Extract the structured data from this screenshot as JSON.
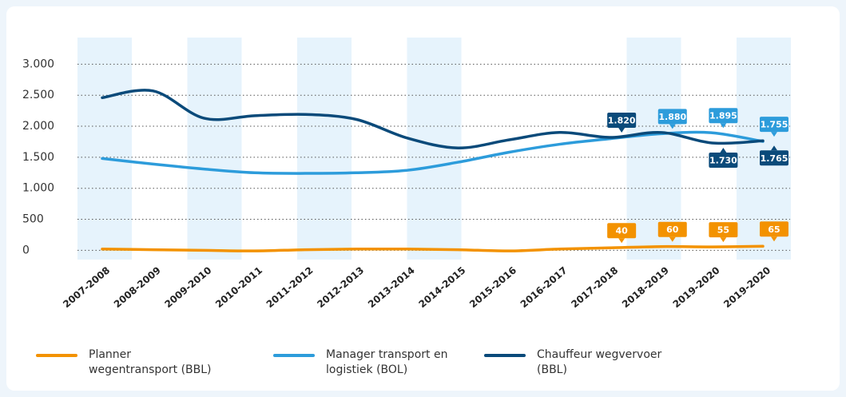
{
  "chart_data": {
    "type": "line",
    "categories": [
      "2007-2008",
      "2008-2009",
      "2009-2010",
      "2010-2011",
      "2011-2012",
      "2012-2013",
      "2013-2014",
      "2014-2015",
      "2015-2016",
      "2016-2017",
      "2017-2018",
      "2018-2019",
      "2019-2020",
      "2019-2020"
    ],
    "series": [
      {
        "name": "Planner wegentransport (BBL)",
        "color": "#f39200",
        "values": [
          20,
          10,
          0,
          -10,
          10,
          20,
          20,
          10,
          -10,
          20,
          40,
          60,
          55,
          65
        ],
        "value_labels": [
          null,
          null,
          null,
          null,
          null,
          null,
          null,
          null,
          null,
          null,
          "40",
          "60",
          "55",
          "65"
        ]
      },
      {
        "name": "Manager transport en logistiek (BOL)",
        "color": "#2d9cdb",
        "values": [
          1480,
          1390,
          1310,
          1250,
          1240,
          1250,
          1290,
          1420,
          1580,
          1710,
          1800,
          1880,
          1895,
          1755
        ],
        "value_labels": [
          null,
          null,
          null,
          null,
          null,
          null,
          null,
          null,
          null,
          null,
          null,
          "1.880",
          "1.895",
          "1.755"
        ]
      },
      {
        "name": "Chauffeur wegvervoer (BBL)",
        "color": "#0a4a7a",
        "values": [
          2460,
          2570,
          2130,
          2170,
          2190,
          2110,
          1810,
          1650,
          1780,
          1900,
          1820,
          1900,
          1730,
          1765
        ],
        "value_labels": [
          null,
          null,
          null,
          null,
          null,
          null,
          null,
          null,
          null,
          null,
          "1.820",
          null,
          "1.730",
          "1.765"
        ]
      }
    ],
    "ylim": [
      -150,
      3430
    ],
    "yticks": [
      0,
      500,
      {
        "value": 1000,
        "label": "1.000"
      },
      {
        "value": 1500,
        "label": "1.500"
      },
      {
        "value": 2000,
        "label": "2.000"
      },
      {
        "value": 2500,
        "label": "2.500"
      },
      {
        "value": 3000,
        "label": "3.000"
      }
    ],
    "grid": true
  }
}
